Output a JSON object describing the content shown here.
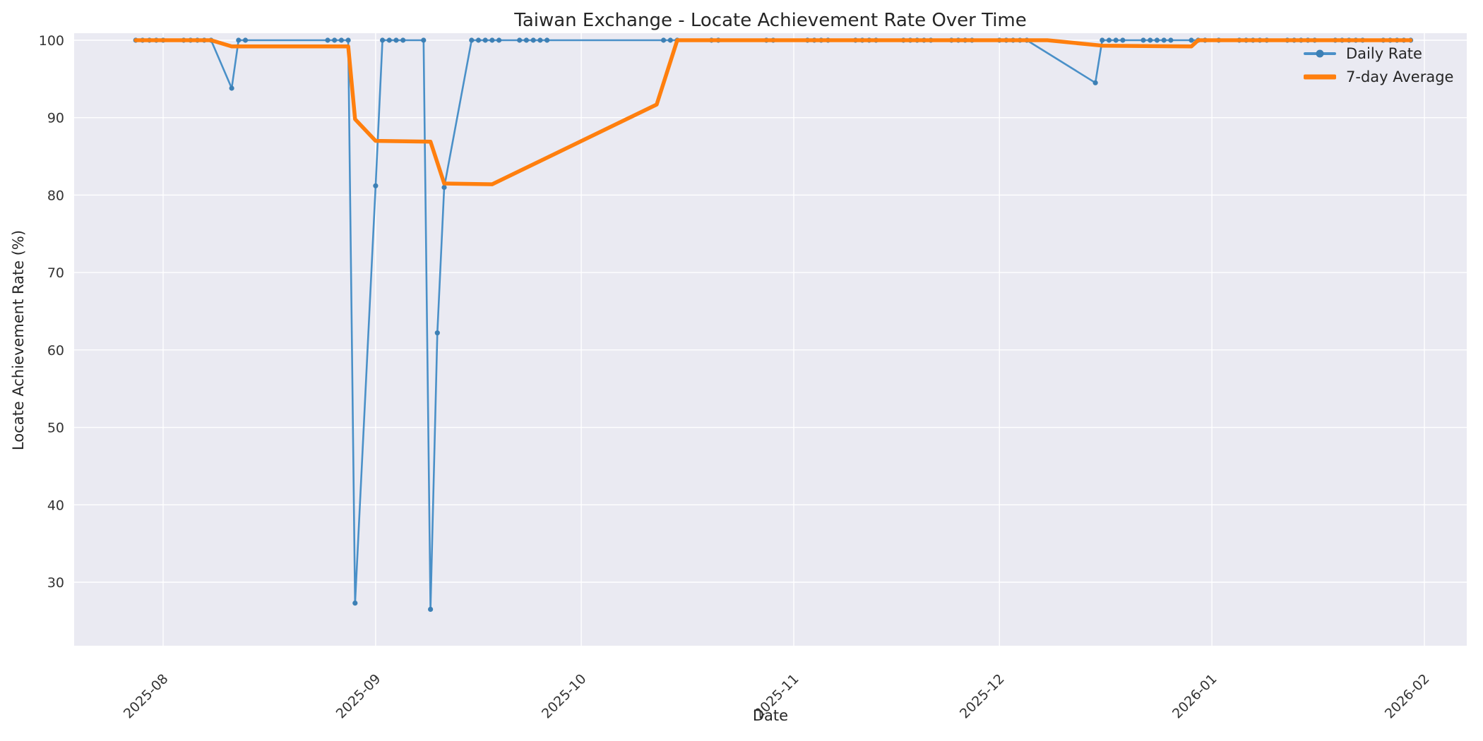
{
  "chart_data": {
    "type": "line",
    "title": "Taiwan Exchange - Locate Achievement Rate Over Time",
    "xlabel": "Date",
    "ylabel": "Locate Achievement Rate (%)",
    "grid": true,
    "legend_position": "upper right",
    "plot_bg_color": "#eaeaf2",
    "grid_color": "#ffffff",
    "text_color": "#262626",
    "tick_color": "#333333",
    "ylim": [
      21.8,
      100.9
    ],
    "xlim": [
      "2025-07-19",
      "2026-02-08"
    ],
    "y_ticks": [
      30,
      40,
      50,
      60,
      70,
      80,
      90,
      100
    ],
    "x_ticks": [
      {
        "label": "2025-08",
        "date": "2025-08-01"
      },
      {
        "label": "2025-09",
        "date": "2025-09-01"
      },
      {
        "label": "2025-10",
        "date": "2025-10-01"
      },
      {
        "label": "2025-11",
        "date": "2025-11-01"
      },
      {
        "label": "2025-12",
        "date": "2025-12-01"
      },
      {
        "label": "2026-01",
        "date": "2026-01-01"
      },
      {
        "label": "2026-02",
        "date": "2026-02-01"
      }
    ],
    "series": [
      {
        "name": "Daily Rate",
        "style": "line+markers",
        "color": "#4a90c8",
        "marker_color": "#3d80b5",
        "line_width": 2.6,
        "points": [
          [
            "2025-07-28",
            100
          ],
          [
            "2025-07-29",
            100
          ],
          [
            "2025-07-30",
            100
          ],
          [
            "2025-07-31",
            100
          ],
          [
            "2025-08-01",
            100
          ],
          [
            "2025-08-04",
            100
          ],
          [
            "2025-08-05",
            100
          ],
          [
            "2025-08-06",
            100
          ],
          [
            "2025-08-07",
            100
          ],
          [
            "2025-08-08",
            100
          ],
          [
            "2025-08-11",
            93.8
          ],
          [
            "2025-08-12",
            100
          ],
          [
            "2025-08-13",
            100
          ],
          [
            "2025-08-25",
            100
          ],
          [
            "2025-08-26",
            100
          ],
          [
            "2025-08-27",
            100
          ],
          [
            "2025-08-28",
            100
          ],
          [
            "2025-08-29",
            27.3
          ],
          [
            "2025-09-01",
            81.2
          ],
          [
            "2025-09-02",
            100
          ],
          [
            "2025-09-03",
            100
          ],
          [
            "2025-09-04",
            100
          ],
          [
            "2025-09-05",
            100
          ],
          [
            "2025-09-08",
            100
          ],
          [
            "2025-09-09",
            26.5
          ],
          [
            "2025-09-10",
            62.2
          ],
          [
            "2025-09-11",
            81.0
          ],
          [
            "2025-09-15",
            100
          ],
          [
            "2025-09-16",
            100
          ],
          [
            "2025-09-17",
            100
          ],
          [
            "2025-09-18",
            100
          ],
          [
            "2025-09-19",
            100
          ],
          [
            "2025-09-22",
            100
          ],
          [
            "2025-09-23",
            100
          ],
          [
            "2025-09-24",
            100
          ],
          [
            "2025-09-25",
            100
          ],
          [
            "2025-09-26",
            100
          ],
          [
            "2025-10-13",
            100
          ],
          [
            "2025-10-14",
            100
          ],
          [
            "2025-10-15",
            100
          ],
          [
            "2025-10-20",
            100
          ],
          [
            "2025-10-21",
            100
          ],
          [
            "2025-10-28",
            100
          ],
          [
            "2025-10-29",
            100
          ],
          [
            "2025-11-03",
            100
          ],
          [
            "2025-11-04",
            100
          ],
          [
            "2025-11-05",
            100
          ],
          [
            "2025-11-06",
            100
          ],
          [
            "2025-11-10",
            100
          ],
          [
            "2025-11-11",
            100
          ],
          [
            "2025-11-12",
            100
          ],
          [
            "2025-11-13",
            100
          ],
          [
            "2025-11-17",
            100
          ],
          [
            "2025-11-18",
            100
          ],
          [
            "2025-11-19",
            100
          ],
          [
            "2025-11-20",
            100
          ],
          [
            "2025-11-21",
            100
          ],
          [
            "2025-11-24",
            100
          ],
          [
            "2025-11-25",
            100
          ],
          [
            "2025-11-26",
            100
          ],
          [
            "2025-11-27",
            100
          ],
          [
            "2025-12-01",
            100
          ],
          [
            "2025-12-02",
            100
          ],
          [
            "2025-12-03",
            100
          ],
          [
            "2025-12-04",
            100
          ],
          [
            "2025-12-05",
            100
          ],
          [
            "2025-12-15",
            94.5
          ],
          [
            "2025-12-16",
            100
          ],
          [
            "2025-12-17",
            100
          ],
          [
            "2025-12-18",
            100
          ],
          [
            "2025-12-19",
            100
          ],
          [
            "2025-12-22",
            100
          ],
          [
            "2025-12-23",
            100
          ],
          [
            "2025-12-24",
            100
          ],
          [
            "2025-12-25",
            100
          ],
          [
            "2025-12-26",
            100
          ],
          [
            "2025-12-29",
            100
          ],
          [
            "2025-12-30",
            100
          ],
          [
            "2025-12-31",
            100
          ],
          [
            "2026-01-02",
            100
          ],
          [
            "2026-01-05",
            100
          ],
          [
            "2026-01-06",
            100
          ],
          [
            "2026-01-07",
            100
          ],
          [
            "2026-01-08",
            100
          ],
          [
            "2026-01-09",
            100
          ],
          [
            "2026-01-12",
            100
          ],
          [
            "2026-01-13",
            100
          ],
          [
            "2026-01-14",
            100
          ],
          [
            "2026-01-15",
            100
          ],
          [
            "2026-01-16",
            100
          ],
          [
            "2026-01-19",
            100
          ],
          [
            "2026-01-20",
            100
          ],
          [
            "2026-01-21",
            100
          ],
          [
            "2026-01-22",
            100
          ],
          [
            "2026-01-23",
            100
          ],
          [
            "2026-01-26",
            100
          ],
          [
            "2026-01-27",
            100
          ],
          [
            "2026-01-28",
            100
          ],
          [
            "2026-01-29",
            100
          ],
          [
            "2026-01-30",
            100
          ]
        ]
      },
      {
        "name": "7-day Average",
        "style": "line",
        "color": "#ff7f0e",
        "line_width": 5.5,
        "points": [
          [
            "2025-07-28",
            100
          ],
          [
            "2025-08-08",
            100
          ],
          [
            "2025-08-11",
            99.2
          ],
          [
            "2025-08-28",
            99.2
          ],
          [
            "2025-08-29",
            89.8
          ],
          [
            "2025-09-01",
            87.0
          ],
          [
            "2025-09-09",
            86.9
          ],
          [
            "2025-09-11",
            81.5
          ],
          [
            "2025-09-18",
            81.4
          ],
          [
            "2025-10-12",
            91.7
          ],
          [
            "2025-10-15",
            100
          ],
          [
            "2025-12-08",
            100
          ],
          [
            "2025-12-16",
            99.3
          ],
          [
            "2025-12-29",
            99.2
          ],
          [
            "2025-12-30",
            100
          ],
          [
            "2026-01-30",
            100
          ]
        ]
      }
    ]
  }
}
